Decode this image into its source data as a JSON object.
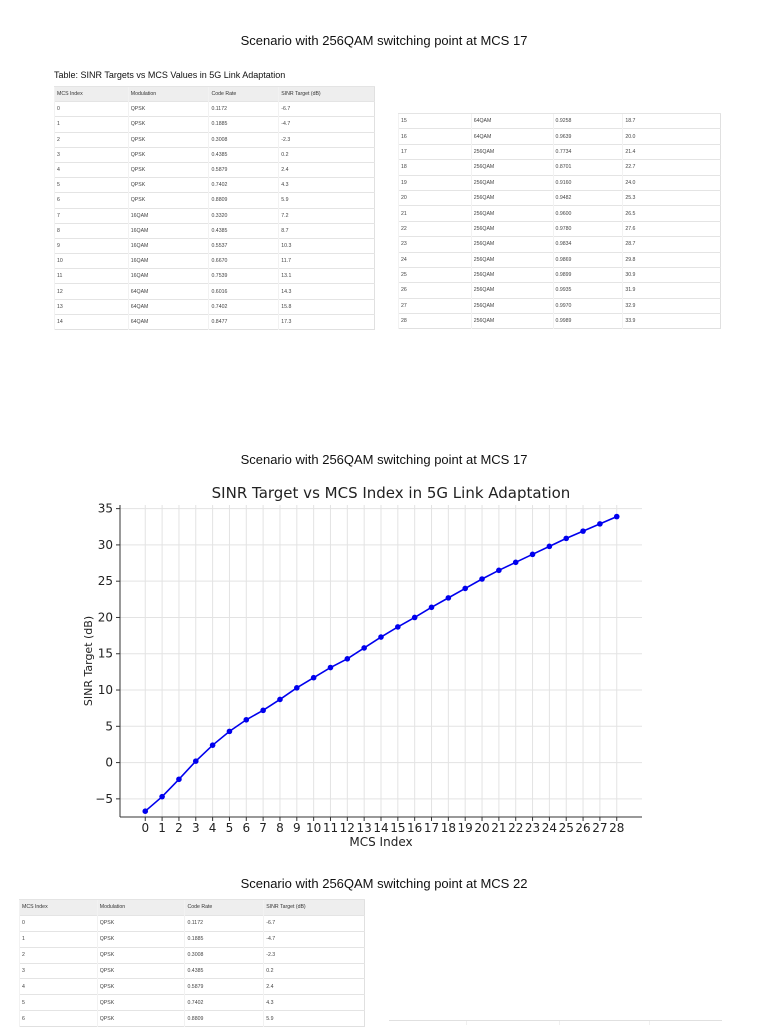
{
  "scenario1_title": "Scenario with 256QAM switching point at MCS 17",
  "table1_title": "Table: SINR Targets vs MCS Values in 5G Link Adaptation",
  "columns": [
    "MCS Index",
    "Modulation",
    "Code Rate",
    "SINR Target (dB)"
  ],
  "table1_rows": [
    [
      "0",
      "QPSK",
      "0.1172",
      "-6.7"
    ],
    [
      "1",
      "QPSK",
      "0.1885",
      "-4.7"
    ],
    [
      "2",
      "QPSK",
      "0.3008",
      "-2.3"
    ],
    [
      "3",
      "QPSK",
      "0.4385",
      "0.2"
    ],
    [
      "4",
      "QPSK",
      "0.5879",
      "2.4"
    ],
    [
      "5",
      "QPSK",
      "0.7402",
      "4.3"
    ],
    [
      "6",
      "QPSK",
      "0.8809",
      "5.9"
    ],
    [
      "7",
      "16QAM",
      "0.3320",
      "7.2"
    ],
    [
      "8",
      "16QAM",
      "0.4385",
      "8.7"
    ],
    [
      "9",
      "16QAM",
      "0.5537",
      "10.3"
    ],
    [
      "10",
      "16QAM",
      "0.6670",
      "11.7"
    ],
    [
      "11",
      "16QAM",
      "0.7539",
      "13.1"
    ],
    [
      "12",
      "64QAM",
      "0.6016",
      "14.3"
    ],
    [
      "13",
      "64QAM",
      "0.7402",
      "15.8"
    ],
    [
      "14",
      "64QAM",
      "0.8477",
      "17.3"
    ]
  ],
  "table2_rows": [
    [
      "15",
      "64QAM",
      "0.9258",
      "18.7"
    ],
    [
      "16",
      "64QAM",
      "0.9639",
      "20.0"
    ],
    [
      "17",
      "256QAM",
      "0.7734",
      "21.4"
    ],
    [
      "18",
      "256QAM",
      "0.8701",
      "22.7"
    ],
    [
      "19",
      "256QAM",
      "0.9160",
      "24.0"
    ],
    [
      "20",
      "256QAM",
      "0.9482",
      "25.3"
    ],
    [
      "21",
      "256QAM",
      "0.9600",
      "26.5"
    ],
    [
      "22",
      "256QAM",
      "0.9780",
      "27.6"
    ],
    [
      "23",
      "256QAM",
      "0.9834",
      "28.7"
    ],
    [
      "24",
      "256QAM",
      "0.9869",
      "29.8"
    ],
    [
      "25",
      "256QAM",
      "0.9899",
      "30.9"
    ],
    [
      "26",
      "256QAM",
      "0.9935",
      "31.9"
    ],
    [
      "27",
      "256QAM",
      "0.9970",
      "32.9"
    ],
    [
      "28",
      "256QAM",
      "0.9989",
      "33.9"
    ]
  ],
  "scenario2_title": "Scenario with 256QAM switching point at MCS 17",
  "chart_data": {
    "type": "line",
    "title": "SINR Target vs MCS Index in 5G Link Adaptation",
    "xlabel": "MCS Index",
    "ylabel": "SINR Target (dB)",
    "x": [
      0,
      1,
      2,
      3,
      4,
      5,
      6,
      7,
      8,
      9,
      10,
      11,
      12,
      13,
      14,
      15,
      16,
      17,
      18,
      19,
      20,
      21,
      22,
      23,
      24,
      25,
      26,
      27,
      28
    ],
    "y": [
      -6.7,
      -4.7,
      -2.3,
      0.2,
      2.4,
      4.3,
      5.9,
      7.2,
      8.7,
      10.3,
      11.7,
      13.1,
      14.3,
      15.8,
      17.3,
      18.7,
      20.0,
      21.4,
      22.7,
      24.0,
      25.3,
      26.5,
      27.6,
      28.7,
      29.8,
      30.9,
      31.9,
      32.9,
      33.9
    ],
    "xlim": [
      -1.5,
      29.5
    ],
    "ylim": [
      -7.5,
      35.5
    ],
    "yticks": [
      -5,
      0,
      5,
      10,
      15,
      20,
      25,
      30,
      35
    ],
    "ytick_labels": [
      "−5",
      "0",
      "5",
      "10",
      "15",
      "20",
      "25",
      "30",
      "35"
    ],
    "grid": true,
    "color": "#0000ee"
  },
  "scenario3_title": "Scenario with 256QAM switching point at MCS 22",
  "table3_rows": [
    [
      "0",
      "QPSK",
      "0.1172",
      "-6.7"
    ],
    [
      "1",
      "QPSK",
      "0.1885",
      "-4.7"
    ],
    [
      "2",
      "QPSK",
      "0.3008",
      "-2.3"
    ],
    [
      "3",
      "QPSK",
      "0.4385",
      "0.2"
    ],
    [
      "4",
      "QPSK",
      "0.5879",
      "2.4"
    ],
    [
      "5",
      "QPSK",
      "0.7402",
      "4.3"
    ],
    [
      "6",
      "QPSK",
      "0.8809",
      "5.9"
    ]
  ]
}
